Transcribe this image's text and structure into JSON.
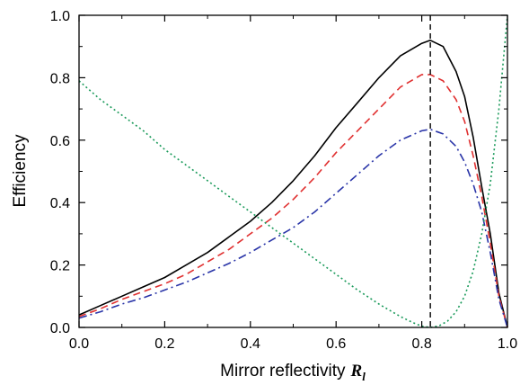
{
  "chart_data": {
    "type": "line",
    "xlabel": "Mirror reflectivity",
    "xlabel_symbol": "R",
    "xlabel_subscript": "l",
    "ylabel": "Efficiency",
    "xlim": [
      0,
      1
    ],
    "ylim": [
      0,
      1
    ],
    "x_ticks": [
      0.0,
      0.2,
      0.4,
      0.6,
      0.8,
      1.0
    ],
    "x_tick_labels": [
      "0.0",
      "0.2",
      "0.4",
      "0.6",
      "0.8",
      "1.0"
    ],
    "y_ticks": [
      0.0,
      0.2,
      0.4,
      0.6,
      0.8,
      1.0
    ],
    "y_tick_labels": [
      "0.0",
      "0.2",
      "0.4",
      "0.6",
      "0.8",
      "1.0"
    ],
    "grid": false,
    "vertical_marker": {
      "x": 0.82,
      "style": "dashed",
      "color": "#000000"
    },
    "series": [
      {
        "color": "#000000",
        "style": "solid",
        "x": [
          0.0,
          0.05,
          0.1,
          0.15,
          0.2,
          0.25,
          0.3,
          0.35,
          0.4,
          0.45,
          0.5,
          0.55,
          0.6,
          0.65,
          0.7,
          0.75,
          0.8,
          0.82,
          0.85,
          0.88,
          0.9,
          0.92,
          0.94,
          0.96,
          0.98,
          1.0
        ],
        "y": [
          0.04,
          0.07,
          0.1,
          0.13,
          0.16,
          0.2,
          0.24,
          0.29,
          0.34,
          0.4,
          0.47,
          0.55,
          0.64,
          0.72,
          0.8,
          0.87,
          0.91,
          0.92,
          0.9,
          0.82,
          0.74,
          0.61,
          0.45,
          0.3,
          0.11,
          0.0
        ]
      },
      {
        "color": "#e03030",
        "style": "dashed",
        "x": [
          0.0,
          0.05,
          0.1,
          0.15,
          0.2,
          0.25,
          0.3,
          0.35,
          0.4,
          0.45,
          0.5,
          0.55,
          0.6,
          0.65,
          0.7,
          0.75,
          0.8,
          0.82,
          0.85,
          0.88,
          0.9,
          0.92,
          0.94,
          0.96,
          0.98,
          1.0
        ],
        "y": [
          0.035,
          0.06,
          0.09,
          0.115,
          0.14,
          0.17,
          0.21,
          0.25,
          0.3,
          0.35,
          0.41,
          0.48,
          0.56,
          0.63,
          0.7,
          0.77,
          0.81,
          0.81,
          0.79,
          0.73,
          0.66,
          0.55,
          0.42,
          0.27,
          0.1,
          0.0
        ]
      },
      {
        "color": "#2a35a8",
        "style": "dash-dot",
        "x": [
          0.0,
          0.05,
          0.1,
          0.15,
          0.2,
          0.25,
          0.3,
          0.35,
          0.4,
          0.45,
          0.5,
          0.55,
          0.6,
          0.65,
          0.7,
          0.75,
          0.8,
          0.82,
          0.85,
          0.88,
          0.9,
          0.92,
          0.94,
          0.96,
          0.98,
          1.0
        ],
        "y": [
          0.03,
          0.05,
          0.075,
          0.095,
          0.12,
          0.145,
          0.175,
          0.205,
          0.24,
          0.28,
          0.32,
          0.37,
          0.43,
          0.49,
          0.55,
          0.6,
          0.63,
          0.635,
          0.62,
          0.58,
          0.53,
          0.46,
          0.37,
          0.24,
          0.09,
          0.0
        ]
      },
      {
        "color": "#1a9a5a",
        "style": "dotted",
        "x": [
          0.0,
          0.05,
          0.1,
          0.15,
          0.2,
          0.25,
          0.3,
          0.35,
          0.4,
          0.45,
          0.5,
          0.55,
          0.6,
          0.65,
          0.7,
          0.75,
          0.78,
          0.8,
          0.82,
          0.84,
          0.86,
          0.88,
          0.9,
          0.92,
          0.94,
          0.96,
          0.98,
          1.0
        ],
        "y": [
          0.79,
          0.73,
          0.68,
          0.63,
          0.57,
          0.52,
          0.47,
          0.42,
          0.37,
          0.32,
          0.27,
          0.22,
          0.17,
          0.12,
          0.075,
          0.035,
          0.015,
          0.004,
          0.0,
          0.005,
          0.02,
          0.05,
          0.1,
          0.18,
          0.3,
          0.46,
          0.7,
          1.0
        ]
      }
    ]
  }
}
